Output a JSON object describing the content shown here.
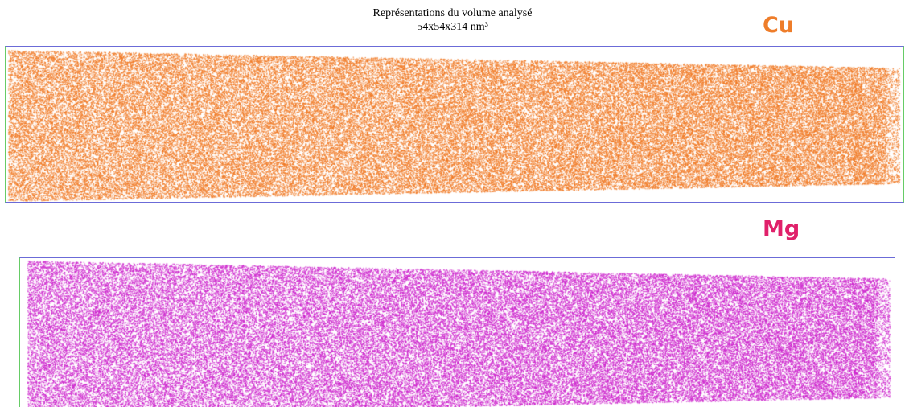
{
  "title": {
    "line1": "Représentations du volume analysé",
    "line2": "54x54x314 nm³"
  },
  "panels": [
    {
      "id": "cu",
      "label": "Cu",
      "color": "#f07822",
      "label_color": "#ee7d2a"
    },
    {
      "id": "mg",
      "label": "Mg",
      "color": "#cc22cc",
      "label_color": "#e0206a"
    }
  ]
}
